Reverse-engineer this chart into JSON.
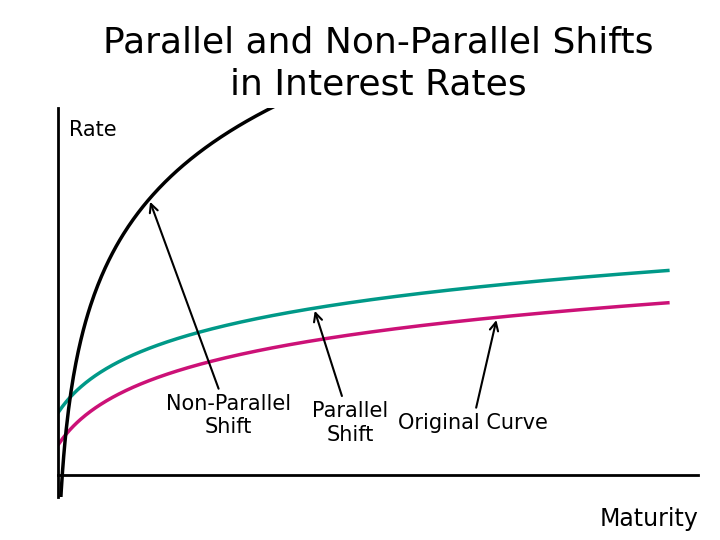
{
  "title_line1": "Parallel and Non-Parallel Shifts",
  "title_line2": "in Interest Rates",
  "title_fontsize": 26,
  "xlabel": "Maturity",
  "ylabel": "Rate",
  "xlabel_fontsize": 17,
  "ylabel_fontsize": 15,
  "background_color": "#ffffff",
  "curve_original_color": "#cc1177",
  "curve_parallel_color": "#009988",
  "curve_nonparallel_color": "#000000",
  "annotation_fontsize": 15,
  "linewidth": 2.5
}
